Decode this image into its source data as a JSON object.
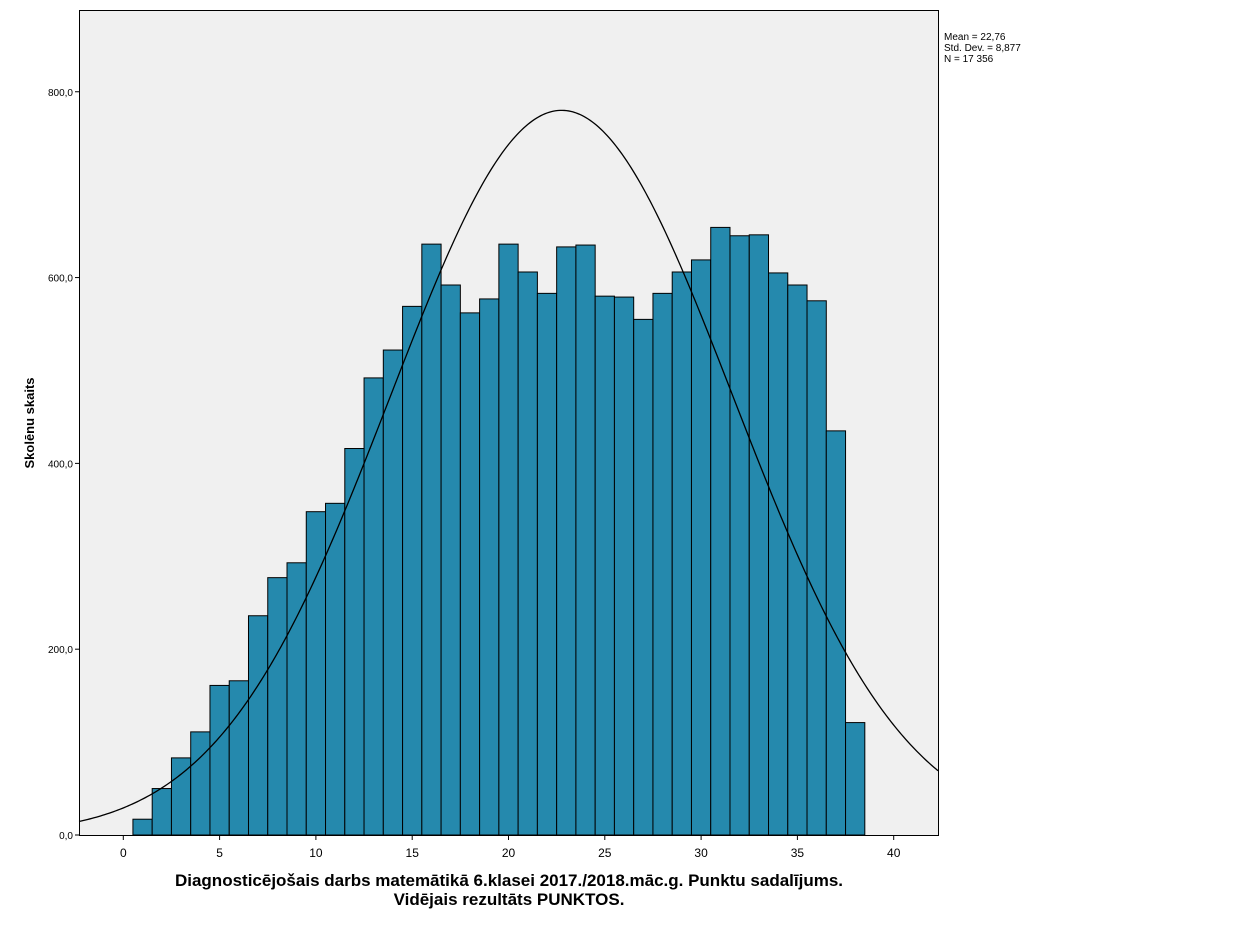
{
  "chart_data": {
    "type": "bar",
    "subtype": "histogram",
    "xlabel_line1": "Diagnosticējošais darbs matemātikā 6.klasei 2017./2018.māc.g. Punktu sadalījums.",
    "xlabel_line2": "Vidējais rezultāts PUNKTOS.",
    "ylabel": "Skolēnu skaits",
    "xlim": [
      -2.3,
      42.3
    ],
    "ylim": [
      0,
      888
    ],
    "x_ticks": [
      0,
      5,
      10,
      15,
      20,
      25,
      30,
      35,
      40
    ],
    "x_tick_labels": [
      "0",
      "5",
      "10",
      "15",
      "20",
      "25",
      "30",
      "35",
      "40"
    ],
    "y_ticks": [
      0,
      200,
      400,
      600,
      800
    ],
    "y_tick_labels": [
      "0,0",
      "200,0",
      "400,0",
      "600,0",
      "800,0"
    ],
    "bin_width": 1,
    "categories": [
      1,
      2,
      3,
      4,
      5,
      6,
      7,
      8,
      9,
      10,
      11,
      12,
      13,
      14,
      15,
      16,
      17,
      18,
      19,
      20,
      21,
      22,
      23,
      24,
      25,
      26,
      27,
      28,
      29,
      30,
      31,
      32,
      33,
      34,
      35,
      36,
      37,
      38
    ],
    "values": [
      17,
      50,
      83,
      111,
      161,
      166,
      236,
      277,
      293,
      348,
      357,
      416,
      492,
      522,
      569,
      636,
      592,
      562,
      577,
      636,
      606,
      583,
      633,
      635,
      580,
      579,
      555,
      583,
      606,
      619,
      654,
      645,
      646,
      605,
      592,
      575,
      435,
      121
    ],
    "normal_curve": {
      "mean": 22.76,
      "std": 8.877,
      "n": 17356
    },
    "stats": [
      "Mean = 22,76",
      "Std. Dev. = 8,877",
      "N = 17 356"
    ],
    "bar_color": "#2589AD",
    "bar_stroke": "#000000",
    "plot_background": "#F0F0F0",
    "grid": false
  }
}
